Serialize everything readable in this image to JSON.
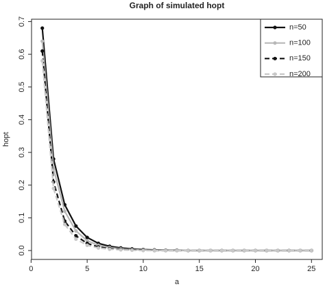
{
  "chart_data": {
    "type": "line",
    "title": "Graph of simulated hopt",
    "x_label": "a",
    "y_label": "hopt",
    "x": [
      1,
      2,
      3,
      4,
      5,
      6,
      7,
      8,
      9,
      10,
      11,
      12,
      13,
      14,
      15,
      16,
      17,
      18,
      19,
      20,
      21,
      22,
      23,
      24,
      25
    ],
    "series": [
      {
        "name": "n=50",
        "color": "#111111",
        "dash": false,
        "values": [
          0.68,
          0.28,
          0.14,
          0.075,
          0.04,
          0.022,
          0.013,
          0.008,
          0.005,
          0.003,
          0.002,
          0.001,
          0.001,
          0,
          0,
          0,
          0,
          0,
          0,
          0,
          0,
          0,
          0,
          0,
          0
        ]
      },
      {
        "name": "n=100",
        "color": "#b8b8b8",
        "dash": false,
        "values": [
          0.64,
          0.25,
          0.12,
          0.06,
          0.03,
          0.016,
          0.009,
          0.005,
          0.003,
          0.002,
          0.001,
          0,
          0,
          0,
          0,
          0,
          0,
          0,
          0,
          0,
          0,
          0,
          0,
          0,
          0
        ]
      },
      {
        "name": "n=150",
        "color": "#111111",
        "dash": true,
        "values": [
          0.61,
          0.21,
          0.09,
          0.045,
          0.022,
          0.011,
          0.006,
          0.003,
          0.002,
          0.001,
          0,
          0,
          0,
          0,
          0,
          0,
          0,
          0,
          0,
          0,
          0,
          0,
          0,
          0,
          0
        ]
      },
      {
        "name": "n=200",
        "color": "#c8c8c8",
        "dash": true,
        "values": [
          0.58,
          0.19,
          0.08,
          0.035,
          0.016,
          0.008,
          0.004,
          0.002,
          0.001,
          0,
          0,
          0,
          0,
          0,
          0,
          0,
          0,
          0,
          0,
          0,
          0,
          0,
          0,
          0,
          0
        ]
      }
    ],
    "xlim": [
      0.04,
      25.96
    ],
    "xticks": [
      0,
      5,
      10,
      15,
      20,
      25
    ],
    "ylim": [
      -0.0272,
      0.7072
    ],
    "yticks": [
      {
        "value": 0,
        "label": "0.0"
      },
      0.1,
      0.2,
      0.3,
      0.4,
      0.5,
      0.6,
      0.7
    ],
    "legend": "top-right"
  }
}
